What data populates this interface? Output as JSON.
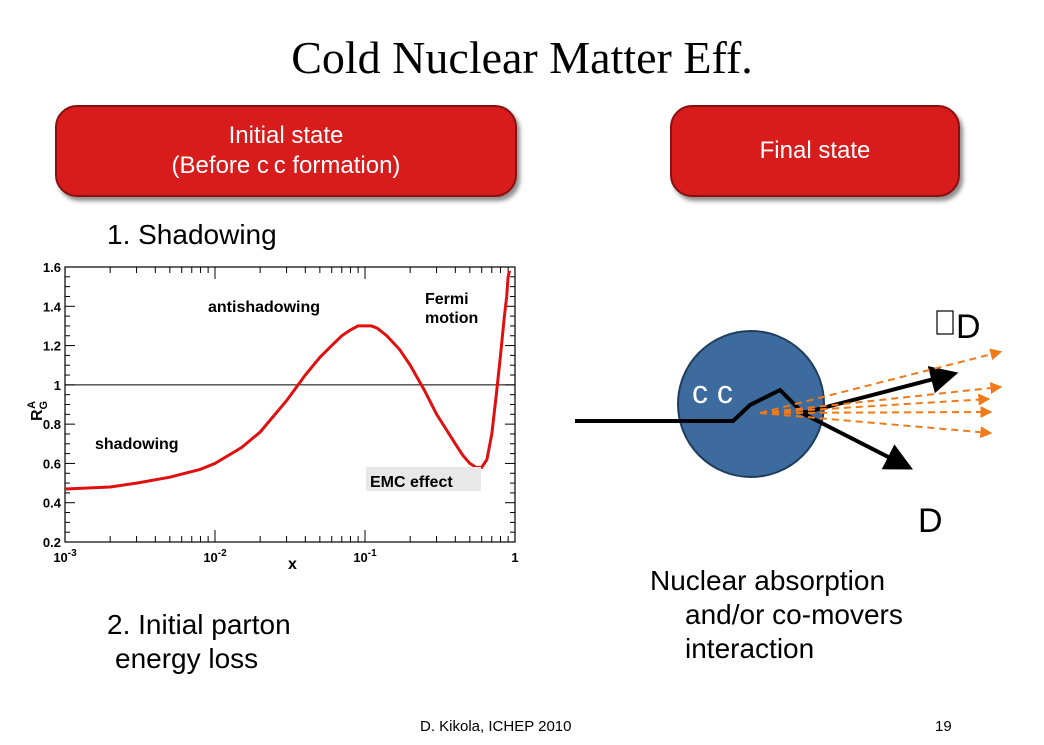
{
  "title": "Cold Nuclear Matter Eff.",
  "initial_state": {
    "line1": "Initial state",
    "line2": "(Before c c formation)"
  },
  "final_state": {
    "label": "Final state"
  },
  "shadowing_title": "1. Shadowing",
  "parton_loss": {
    "line1": "2. Initial  parton",
    "line2": "energy loss"
  },
  "absorption": {
    "line1": "Nuclear absorption",
    "line2": "and/or co-movers",
    "line3": "interaction"
  },
  "diagram": {
    "label_dbar": "D",
    "label_d": "D",
    "label_ccbar": "c c"
  },
  "footer": {
    "left": "D. Kikola, ICHEP 2010",
    "right": "19"
  },
  "colors": {
    "pill": "#d81c1c",
    "curve": "#e01010",
    "nucleus": "#3d6b9e",
    "arrows": "#f07a1a"
  },
  "chart_data": {
    "type": "line",
    "xscale": "log",
    "xlim": [
      0.001,
      1
    ],
    "ylim": [
      0.2,
      1.6
    ],
    "xlabel": "x",
    "ylabel": "R_G^A",
    "xticks": [
      "10^-3",
      "10^-2",
      "10^-1",
      "1"
    ],
    "yticks": [
      "0.2",
      "0.4",
      "0.6",
      "0.8",
      "1",
      "1.2",
      "1.4",
      "1.6"
    ],
    "reference_line": 1,
    "annotations": [
      "shadowing",
      "antishadowing",
      "Fermi motion",
      "EMC effect"
    ],
    "series": [
      {
        "x": [
          0.001,
          0.002,
          0.003,
          0.005,
          0.008,
          0.01,
          0.015,
          0.02,
          0.03,
          0.04,
          0.05,
          0.06,
          0.07,
          0.08,
          0.09,
          0.1,
          0.11,
          0.12,
          0.14,
          0.17,
          0.2,
          0.25,
          0.3,
          0.35,
          0.4,
          0.45,
          0.5,
          0.55,
          0.6,
          0.65,
          0.7,
          0.75,
          0.8,
          0.85,
          0.88,
          0.9,
          0.92
        ],
        "y": [
          0.47,
          0.48,
          0.5,
          0.53,
          0.57,
          0.6,
          0.68,
          0.76,
          0.92,
          1.05,
          1.14,
          1.2,
          1.25,
          1.28,
          1.3,
          1.3,
          1.3,
          1.29,
          1.25,
          1.18,
          1.1,
          0.97,
          0.85,
          0.77,
          0.7,
          0.64,
          0.6,
          0.58,
          0.58,
          0.62,
          0.75,
          0.95,
          1.15,
          1.35,
          1.45,
          1.55,
          1.58
        ]
      }
    ]
  }
}
